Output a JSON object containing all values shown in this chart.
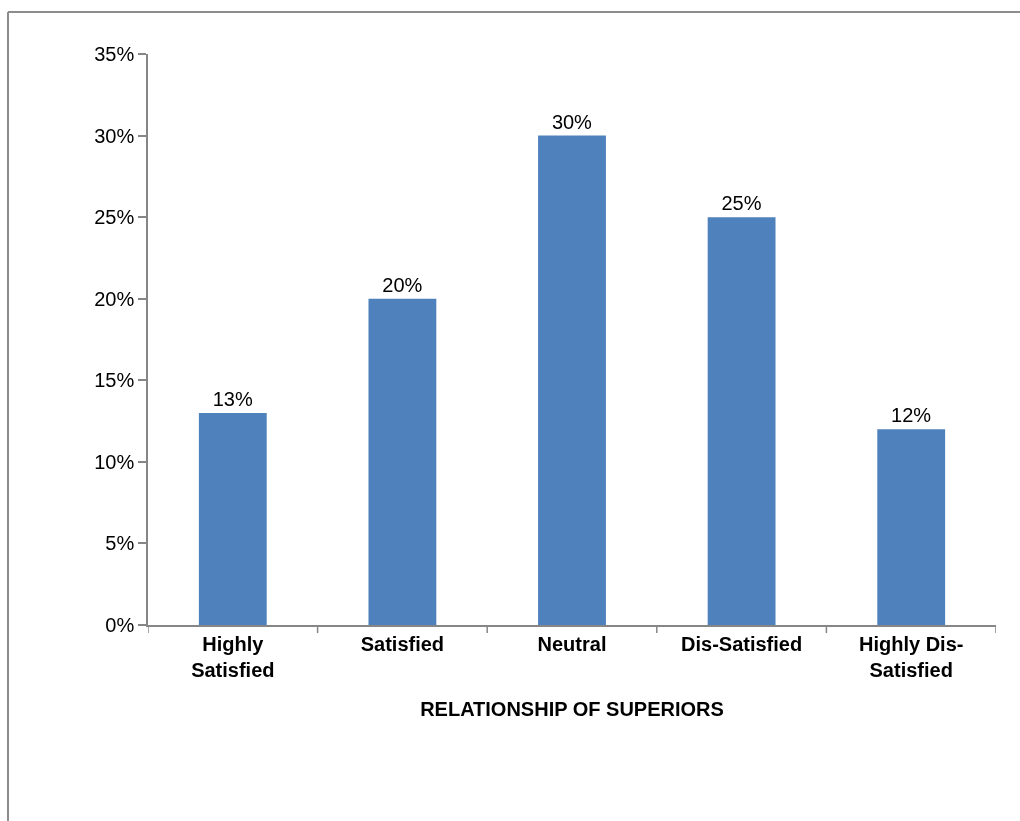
{
  "chart_data": {
    "type": "bar",
    "xlabel": "RELATIONSHIP OF SUPERIORS",
    "categories": [
      "Highly Satisfied",
      "Satisfied",
      "Neutral",
      "Dis-Satisfied",
      "Highly Dis-Satisfied"
    ],
    "values": [
      13,
      20,
      30,
      25,
      12
    ],
    "color": "#4f81bd",
    "value_labels": [
      "13%",
      "20%",
      "30%",
      "25%",
      "12%"
    ],
    "ylim": [
      0,
      35
    ],
    "yticks": [
      {
        "value": 0,
        "label": "0%"
      },
      {
        "value": 5,
        "label": "5%"
      },
      {
        "value": 10,
        "label": "10%"
      },
      {
        "value": 15,
        "label": "15%"
      },
      {
        "value": 20,
        "label": "20%"
      },
      {
        "value": 25,
        "label": "25%"
      },
      {
        "value": 30,
        "label": "30%"
      },
      {
        "value": 35,
        "label": "35%"
      }
    ],
    "grid": false,
    "legend": false
  }
}
